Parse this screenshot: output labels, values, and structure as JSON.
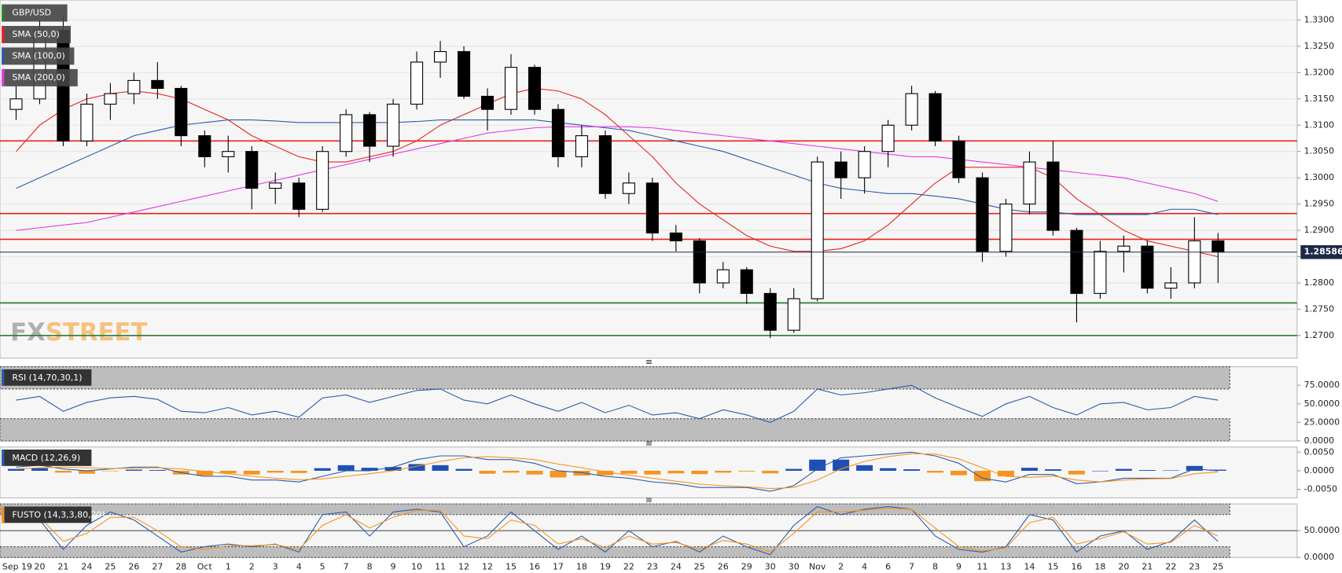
{
  "chart_data": [
    {
      "type": "candlestick",
      "title": "GBP/USD",
      "title_color": "#2e7d32",
      "watermark": [
        "FX",
        "STREET"
      ],
      "categories": [
        "Sep 19",
        "20",
        "21",
        "24",
        "25",
        "26",
        "27",
        "28",
        "Oct",
        "1",
        "2",
        "3",
        "4",
        "5",
        "7",
        "8",
        "9",
        "10",
        "11",
        "12",
        "12",
        "15",
        "16",
        "17",
        "18",
        "19",
        "22",
        "23",
        "24",
        "25",
        "26",
        "29",
        "30",
        "30",
        "Nov",
        "2",
        "4",
        "6",
        "7",
        "8",
        "9",
        "11",
        "13",
        "14",
        "15",
        "16",
        "18",
        "20",
        "21",
        "22",
        "23",
        "25"
      ],
      "open": [
        1.313,
        1.315,
        1.328,
        1.307,
        1.314,
        1.316,
        1.3185,
        1.317,
        1.308,
        1.304,
        1.305,
        1.298,
        1.299,
        1.294,
        1.305,
        1.312,
        1.306,
        1.314,
        1.322,
        1.324,
        1.3155,
        1.313,
        1.321,
        1.313,
        1.304,
        1.308,
        1.297,
        1.299,
        1.2895,
        1.288,
        1.28,
        1.2825,
        1.278,
        1.271,
        1.277,
        1.303,
        1.3,
        1.305,
        1.31,
        1.316,
        1.307,
        1.3,
        1.286,
        1.295,
        1.303,
        1.29,
        1.278,
        1.286,
        1.287,
        1.279,
        1.28,
        1.288
      ],
      "high": [
        1.3175,
        1.33,
        1.3305,
        1.316,
        1.318,
        1.32,
        1.322,
        1.3175,
        1.309,
        1.308,
        1.306,
        1.301,
        1.3,
        1.306,
        1.313,
        1.3125,
        1.315,
        1.324,
        1.326,
        1.325,
        1.317,
        1.3235,
        1.3215,
        1.314,
        1.31,
        1.309,
        1.301,
        1.3,
        1.291,
        1.2885,
        1.284,
        1.283,
        1.279,
        1.279,
        1.304,
        1.305,
        1.306,
        1.311,
        1.3175,
        1.3165,
        1.308,
        1.301,
        1.296,
        1.305,
        1.307,
        1.2905,
        1.288,
        1.289,
        1.288,
        1.283,
        1.2925,
        1.2895
      ],
      "low": [
        1.311,
        1.314,
        1.306,
        1.306,
        1.311,
        1.314,
        1.315,
        1.306,
        1.302,
        1.301,
        1.294,
        1.295,
        1.2925,
        1.2935,
        1.304,
        1.303,
        1.304,
        1.313,
        1.319,
        1.315,
        1.309,
        1.312,
        1.312,
        1.302,
        1.302,
        1.296,
        1.295,
        1.288,
        1.286,
        1.278,
        1.279,
        1.276,
        1.2695,
        1.2705,
        1.2765,
        1.296,
        1.297,
        1.302,
        1.309,
        1.306,
        1.299,
        1.284,
        1.285,
        1.293,
        1.289,
        1.2725,
        1.277,
        1.282,
        1.278,
        1.277,
        1.279,
        1.28
      ],
      "close": [
        1.315,
        1.328,
        1.307,
        1.314,
        1.316,
        1.3185,
        1.317,
        1.308,
        1.304,
        1.305,
        1.298,
        1.299,
        1.294,
        1.305,
        1.312,
        1.306,
        1.314,
        1.322,
        1.324,
        1.3155,
        1.313,
        1.321,
        1.313,
        1.304,
        1.308,
        1.297,
        1.299,
        1.2895,
        1.288,
        1.28,
        1.2825,
        1.278,
        1.271,
        1.277,
        1.303,
        1.3,
        1.305,
        1.31,
        1.316,
        1.307,
        1.3,
        1.286,
        1.295,
        1.303,
        1.29,
        1.278,
        1.286,
        1.287,
        1.279,
        1.28,
        1.288,
        1.28586
      ],
      "up_color": "#ffffff",
      "down_color": "#000000",
      "series": [
        {
          "name": "SMA (50,0)",
          "color": "#e8231e",
          "values": [
            1.305,
            1.31,
            1.313,
            1.315,
            1.316,
            1.3165,
            1.316,
            1.315,
            1.313,
            1.311,
            1.308,
            1.306,
            1.304,
            1.303,
            1.303,
            1.304,
            1.305,
            1.307,
            1.31,
            1.312,
            1.314,
            1.316,
            1.317,
            1.3165,
            1.315,
            1.312,
            1.308,
            1.304,
            1.299,
            1.295,
            1.292,
            1.289,
            1.287,
            1.286,
            1.286,
            1.2865,
            1.288,
            1.291,
            1.295,
            1.299,
            1.302,
            1.302,
            1.302,
            1.302,
            1.3,
            1.296,
            1.293,
            1.29,
            1.288,
            1.287,
            1.286,
            1.285
          ]
        },
        {
          "name": "SMA (100,0)",
          "color": "#2a5caa",
          "values": [
            1.298,
            1.3,
            1.302,
            1.304,
            1.306,
            1.308,
            1.309,
            1.31,
            1.3105,
            1.311,
            1.311,
            1.3108,
            1.3105,
            1.3105,
            1.3105,
            1.3105,
            1.3105,
            1.3107,
            1.311,
            1.311,
            1.311,
            1.311,
            1.311,
            1.3105,
            1.31,
            1.3095,
            1.309,
            1.308,
            1.307,
            1.306,
            1.305,
            1.3035,
            1.302,
            1.3005,
            1.299,
            1.298,
            1.2975,
            1.297,
            1.297,
            1.2965,
            1.296,
            1.295,
            1.294,
            1.2935,
            1.2935,
            1.293,
            1.293,
            1.293,
            1.293,
            1.294,
            1.294,
            1.293
          ]
        },
        {
          "name": "SMA (200,0)",
          "color": "#e339e3",
          "values": [
            1.29,
            1.2905,
            1.291,
            1.2915,
            1.2925,
            1.2935,
            1.2945,
            1.2955,
            1.2965,
            1.2975,
            1.2985,
            1.2995,
            1.3005,
            1.3015,
            1.3025,
            1.3035,
            1.3045,
            1.3055,
            1.3065,
            1.3075,
            1.3085,
            1.309,
            1.3095,
            1.3097,
            1.3097,
            1.3097,
            1.3097,
            1.3095,
            1.309,
            1.3085,
            1.308,
            1.3075,
            1.307,
            1.3065,
            1.306,
            1.3055,
            1.305,
            1.3045,
            1.304,
            1.304,
            1.3035,
            1.303,
            1.3025,
            1.302,
            1.3015,
            1.301,
            1.3005,
            1.3,
            1.299,
            1.298,
            1.297,
            1.2955
          ]
        }
      ],
      "hlines": [
        {
          "value": 1.307,
          "color": "#e8231e"
        },
        {
          "value": 1.2932,
          "color": "#e8231e"
        },
        {
          "value": 1.2883,
          "color": "#e8231e"
        },
        {
          "value": 1.2762,
          "color": "#2e7d32"
        },
        {
          "value": 1.27,
          "color": "#2e7d32"
        }
      ],
      "last_price": {
        "value": 1.28586,
        "label": "1.28586"
      },
      "ylim": [
        1.2657,
        1.3338
      ],
      "yticks": [
        {
          "value": 1.27,
          "label": "1.2700"
        },
        {
          "value": 1.275,
          "label": "1.2750"
        },
        {
          "value": 1.28,
          "label": "1.2800"
        },
        {
          "value": 1.285,
          "label": "1.2850"
        },
        {
          "value": 1.29,
          "label": "1.2900"
        },
        {
          "value": 1.295,
          "label": "1.2950"
        },
        {
          "value": 1.3,
          "label": "1.3000"
        },
        {
          "value": 1.305,
          "label": "1.3050"
        },
        {
          "value": 1.31,
          "label": "1.3100"
        },
        {
          "value": 1.315,
          "label": "1.3150"
        },
        {
          "value": 1.32,
          "label": "1.3200"
        },
        {
          "value": 1.325,
          "label": "1.3250"
        },
        {
          "value": 1.33,
          "label": "1.3300"
        }
      ],
      "grid": true
    },
    {
      "type": "line",
      "title": "RSI (14,70,30,1)",
      "title_color": "#2a5caa",
      "bands": [
        70,
        30
      ],
      "series": [
        {
          "color": "#2a5caa",
          "values": [
            55,
            60,
            40,
            52,
            58,
            60,
            56,
            40,
            38,
            45,
            35,
            40,
            32,
            58,
            62,
            52,
            60,
            68,
            70,
            55,
            50,
            62,
            50,
            40,
            52,
            38,
            48,
            35,
            38,
            30,
            42,
            35,
            25,
            40,
            70,
            62,
            65,
            70,
            75,
            58,
            45,
            33,
            50,
            60,
            45,
            35,
            50,
            52,
            42,
            45,
            60,
            55
          ]
        }
      ],
      "ylim": [
        0,
        100
      ],
      "yticks": [
        {
          "value": 0,
          "label": "0.0000"
        },
        {
          "value": 25,
          "label": "25.0000"
        },
        {
          "value": 50,
          "label": "50.0000"
        },
        {
          "value": 75,
          "label": "75.0000"
        }
      ]
    },
    {
      "type": "macd",
      "title": "MACD (12,26,9)",
      "title_color": "#2a5caa",
      "hist_colors": [
        "#1e4fb4",
        "#f7941d"
      ],
      "series": [
        {
          "color": "#2a5caa",
          "values": [
            0.001,
            0.0015,
            0.0005,
            0.0,
            0.0005,
            0.001,
            0.001,
            -0.0005,
            -0.0015,
            -0.0015,
            -0.0025,
            -0.0025,
            -0.003,
            -0.0015,
            0.0,
            0.0,
            0.001,
            0.003,
            0.004,
            0.004,
            0.003,
            0.003,
            0.002,
            0.0,
            -0.0005,
            -0.0015,
            -0.002,
            -0.003,
            -0.0035,
            -0.0045,
            -0.0045,
            -0.0045,
            -0.0055,
            -0.004,
            0.0005,
            0.0035,
            0.004,
            0.0045,
            0.005,
            0.004,
            0.002,
            -0.002,
            -0.003,
            -0.001,
            -0.001,
            -0.0035,
            -0.003,
            -0.002,
            -0.002,
            -0.002,
            0.0005,
            0.0
          ]
        },
        {
          "color": "#f7941d",
          "values": [
            0.0005,
            0.0008,
            0.001,
            0.0008,
            0.0006,
            0.0007,
            0.0008,
            0.0005,
            -0.0002,
            -0.0008,
            -0.0015,
            -0.002,
            -0.0024,
            -0.0022,
            -0.0015,
            -0.0008,
            0.0,
            0.0012,
            0.0025,
            0.0035,
            0.0038,
            0.0035,
            0.003,
            0.0018,
            0.0008,
            -0.0003,
            -0.0012,
            -0.002,
            -0.0028,
            -0.0036,
            -0.004,
            -0.0043,
            -0.0048,
            -0.0045,
            -0.0025,
            0.0005,
            0.0025,
            0.0038,
            0.0046,
            0.0045,
            0.0032,
            0.0008,
            -0.0015,
            -0.0018,
            -0.0014,
            -0.0025,
            -0.003,
            -0.0025,
            -0.0022,
            -0.0021,
            -0.0008,
            -0.0003
          ]
        }
      ],
      "histogram": [
        0.0005,
        0.0007,
        -0.0005,
        -0.0008,
        -0.0001,
        0.0003,
        0.0002,
        -0.001,
        -0.0013,
        -0.0007,
        -0.001,
        -0.0005,
        -0.0006,
        0.0007,
        0.0015,
        0.0008,
        0.001,
        0.0018,
        0.0015,
        0.0005,
        -0.0008,
        -0.0005,
        -0.001,
        -0.0018,
        -0.0013,
        -0.0012,
        -0.0008,
        -0.001,
        -0.0007,
        -0.0009,
        -0.0005,
        -0.0002,
        -0.0007,
        0.0005,
        0.003,
        0.003,
        0.0015,
        0.0007,
        0.0004,
        -0.0005,
        -0.0012,
        -0.0028,
        -0.0015,
        0.0008,
        0.0004,
        -0.001,
        0.0,
        0.0005,
        0.0002,
        0.0001,
        0.0013,
        0.0003
      ],
      "ylim": [
        -0.0073,
        0.0064
      ],
      "yticks": [
        {
          "value": -0.005,
          "label": "-0.0050"
        },
        {
          "value": 0,
          "label": "0.0000"
        },
        {
          "value": 0.005,
          "label": "0.0050"
        }
      ]
    },
    {
      "type": "line",
      "title": "FUSTO (14,3,3,80,20)",
      "title_color": "#f7941d",
      "bands": [
        80,
        20
      ],
      "midline": 50,
      "series": [
        {
          "color": "#2a5caa",
          "values": [
            80,
            70,
            15,
            60,
            85,
            70,
            40,
            10,
            20,
            25,
            20,
            25,
            10,
            80,
            85,
            40,
            85,
            90,
            85,
            20,
            40,
            85,
            50,
            15,
            40,
            10,
            50,
            20,
            30,
            10,
            40,
            20,
            5,
            60,
            95,
            80,
            90,
            95,
            90,
            40,
            15,
            10,
            20,
            80,
            70,
            10,
            40,
            50,
            15,
            30,
            70,
            30
          ]
        },
        {
          "color": "#f7941d",
          "values": [
            75,
            75,
            30,
            45,
            75,
            75,
            50,
            20,
            15,
            22,
            22,
            24,
            15,
            60,
            80,
            55,
            75,
            88,
            88,
            40,
            35,
            70,
            60,
            25,
            35,
            18,
            40,
            25,
            28,
            15,
            32,
            25,
            10,
            45,
            85,
            85,
            88,
            92,
            90,
            55,
            20,
            12,
            18,
            65,
            75,
            25,
            35,
            48,
            25,
            28,
            60,
            40
          ]
        }
      ],
      "ylim": [
        0,
        100
      ],
      "yticks": [
        {
          "value": 0,
          "label": "0.0000"
        },
        {
          "value": 50,
          "label": "50.0000"
        }
      ]
    }
  ]
}
